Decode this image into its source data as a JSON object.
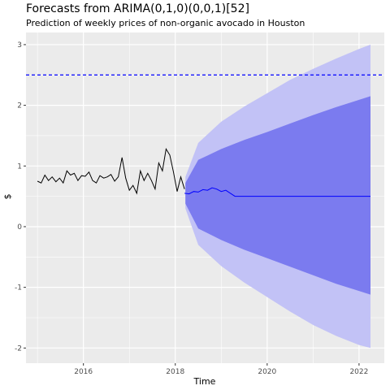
{
  "chart_data": {
    "type": "line",
    "title": "Forecasts from ARIMA(0,1,0)(0,0,1)[52]",
    "subtitle": "Prediction of weekly prices of non-organic avocado in Houston",
    "xlabel": "Time",
    "ylabel": "$",
    "xlim": [
      2014.75,
      2022.55
    ],
    "ylim": [
      -2.25,
      3.2
    ],
    "x_ticks": [
      2016,
      2018,
      2020,
      2022
    ],
    "x_tick_labels": [
      "2016",
      "2018",
      "2020",
      "2022"
    ],
    "y_ticks": [
      -2,
      -1,
      0,
      1,
      2,
      3
    ],
    "y_tick_labels": [
      "-2",
      "-1",
      "0",
      "1",
      "2",
      "3"
    ],
    "grid": true,
    "colors": {
      "panel": "#ebebeb",
      "grid": "#ffffff",
      "observed": "#000000",
      "forecast": "#0000ff",
      "band80": "#7b7bef",
      "band95": "#c2c2f6",
      "hline": "#0000ff"
    },
    "reference_line": {
      "y": 2.5,
      "style": "dashed"
    },
    "observed": {
      "x": [
        2015.0,
        2015.08,
        2015.16,
        2015.24,
        2015.32,
        2015.4,
        2015.48,
        2015.56,
        2015.64,
        2015.72,
        2015.8,
        2015.88,
        2015.96,
        2016.04,
        2016.12,
        2016.2,
        2016.28,
        2016.36,
        2016.44,
        2016.52,
        2016.6,
        2016.68,
        2016.76,
        2016.84,
        2016.92,
        2017.0,
        2017.08,
        2017.16,
        2017.24,
        2017.32,
        2017.4,
        2017.48,
        2017.56,
        2017.64,
        2017.72,
        2017.8,
        2017.88,
        2017.96,
        2018.04,
        2018.12,
        2018.2
      ],
      "y": [
        0.75,
        0.72,
        0.85,
        0.76,
        0.82,
        0.74,
        0.8,
        0.72,
        0.92,
        0.85,
        0.88,
        0.76,
        0.84,
        0.83,
        0.9,
        0.76,
        0.72,
        0.84,
        0.8,
        0.82,
        0.86,
        0.75,
        0.82,
        1.14,
        0.8,
        0.6,
        0.68,
        0.55,
        0.92,
        0.76,
        0.88,
        0.76,
        0.62,
        1.05,
        0.92,
        1.28,
        1.18,
        0.9,
        0.58,
        0.82,
        0.62
      ]
    },
    "forecast": {
      "x": [
        2018.2,
        2018.3,
        2018.4,
        2018.5,
        2018.6,
        2018.7,
        2018.8,
        2018.9,
        2019.0,
        2019.1,
        2019.2,
        2019.3,
        2022.25
      ],
      "y": [
        0.55,
        0.54,
        0.58,
        0.57,
        0.61,
        0.6,
        0.64,
        0.62,
        0.58,
        0.6,
        0.55,
        0.5,
        0.5
      ]
    },
    "interval_80": {
      "x": [
        2018.22,
        2018.5,
        2019.0,
        2019.5,
        2020.0,
        2020.5,
        2021.0,
        2021.5,
        2022.0,
        2022.25
      ],
      "lower": [
        0.38,
        -0.03,
        -0.22,
        -0.38,
        -0.52,
        -0.66,
        -0.8,
        -0.94,
        -1.06,
        -1.12
      ],
      "upper": [
        0.72,
        1.1,
        1.28,
        1.43,
        1.56,
        1.7,
        1.84,
        1.97,
        2.09,
        2.15
      ]
    },
    "interval_95": {
      "x": [
        2018.22,
        2018.5,
        2019.0,
        2019.5,
        2020.0,
        2020.5,
        2021.0,
        2021.5,
        2022.0,
        2022.25
      ],
      "lower": [
        0.3,
        -0.3,
        -0.65,
        -0.92,
        -1.16,
        -1.4,
        -1.62,
        -1.8,
        -1.95,
        -2.0
      ],
      "upper": [
        0.82,
        1.38,
        1.73,
        1.98,
        2.2,
        2.42,
        2.6,
        2.77,
        2.93,
        3.0
      ]
    }
  }
}
